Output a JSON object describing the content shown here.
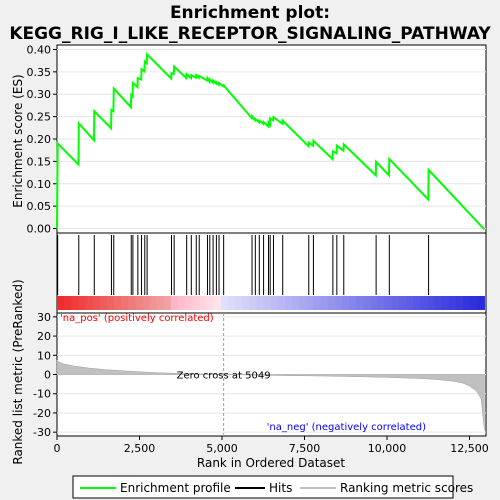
{
  "title_line1": "Enrichment plot:",
  "title_line2": "KEGG_RIG_I_LIKE_RECEPTOR_SIGNALING_PATHWAY",
  "colors": {
    "enrichment_line": "#00ff00",
    "hits": "#000000",
    "ranking_fill": "#c0c0c0",
    "pos_label": "#ff0000",
    "neg_label": "#0000ff",
    "zero_cross_line": "#a0a0a0"
  },
  "chart_data": [
    {
      "type": "line",
      "panel": "enrichment",
      "ylabel": "Enrichment score (ES)",
      "xlim": [
        0,
        13000
      ],
      "ylim": [
        -0.01,
        0.41
      ],
      "yticks": [
        0.0,
        0.05,
        0.1,
        0.15,
        0.2,
        0.25,
        0.3,
        0.35,
        0.4
      ],
      "ytick_labels": [
        "0.00",
        "0.05",
        "0.10",
        "0.15",
        "0.20",
        "0.25",
        "0.30",
        "0.35",
        "0.40"
      ],
      "series": [
        {
          "name": "Enrichment profile",
          "x": [
            0,
            20,
            650,
            660,
            1120,
            1130,
            1640,
            1650,
            1710,
            1720,
            2240,
            2250,
            2290,
            2300,
            2440,
            2450,
            2550,
            2560,
            2650,
            2660,
            2720,
            2730,
            3460,
            3470,
            3540,
            3550,
            3920,
            3930,
            4060,
            4070,
            4210,
            4220,
            4300,
            4310,
            4550,
            4560,
            4620,
            4630,
            4720,
            4730,
            4820,
            4830,
            4900,
            4910,
            5040,
            5050,
            5900,
            5910,
            6000,
            6010,
            6120,
            6130,
            6250,
            6260,
            6400,
            6410,
            6450,
            6460,
            6550,
            6560,
            6830,
            6840,
            7620,
            7630,
            7760,
            7770,
            8350,
            8360,
            8470,
            8480,
            8680,
            8690,
            9660,
            9670,
            10060,
            10070,
            11250,
            11260,
            12950
          ],
          "y": [
            0.0,
            0.19,
            0.143,
            0.235,
            0.197,
            0.262,
            0.224,
            0.265,
            0.262,
            0.313,
            0.271,
            0.298,
            0.295,
            0.325,
            0.316,
            0.336,
            0.333,
            0.356,
            0.351,
            0.373,
            0.369,
            0.389,
            0.335,
            0.347,
            0.345,
            0.362,
            0.336,
            0.345,
            0.336,
            0.343,
            0.337,
            0.343,
            0.337,
            0.341,
            0.331,
            0.336,
            0.328,
            0.333,
            0.326,
            0.331,
            0.324,
            0.327,
            0.321,
            0.325,
            0.318,
            0.32,
            0.247,
            0.251,
            0.242,
            0.245,
            0.237,
            0.241,
            0.234,
            0.238,
            0.228,
            0.237,
            0.232,
            0.246,
            0.242,
            0.249,
            0.234,
            0.241,
            0.184,
            0.192,
            0.185,
            0.196,
            0.155,
            0.172,
            0.168,
            0.185,
            0.174,
            0.188,
            0.119,
            0.149,
            0.119,
            0.155,
            0.065,
            0.131,
            -0.002
          ]
        }
      ]
    },
    {
      "type": "bar",
      "panel": "hits",
      "name": "Hits",
      "positions": [
        20,
        660,
        1130,
        1650,
        1720,
        2250,
        2300,
        2450,
        2560,
        2660,
        2730,
        3470,
        3550,
        3930,
        4070,
        4220,
        4310,
        4560,
        4630,
        4730,
        4830,
        4910,
        5050,
        5910,
        6010,
        6130,
        6260,
        6410,
        6460,
        6560,
        6840,
        7630,
        7770,
        8360,
        8480,
        8690,
        9670,
        10070,
        11260
      ]
    },
    {
      "type": "area",
      "panel": "ranking",
      "name": "Ranking metric scores",
      "xlabel": "Rank in Ordered Dataset",
      "ylabel": "Ranked list metric (PreRanked)",
      "xlim": [
        0,
        13000
      ],
      "ylim": [
        -32,
        32
      ],
      "xticks": [
        0,
        2500,
        5000,
        7500,
        10000,
        12500
      ],
      "xtick_labels": [
        "0",
        "2,500",
        "5,000",
        "7,500",
        "10,000",
        "12,500"
      ],
      "yticks": [
        -30,
        -20,
        -10,
        0,
        10,
        20,
        30
      ],
      "ytick_labels": [
        "-30",
        "-20",
        "-10",
        "0",
        "10",
        "20",
        "30"
      ],
      "x": [
        0,
        50,
        200,
        500,
        1000,
        1500,
        2000,
        2500,
        3000,
        3500,
        4000,
        4500,
        5049,
        6000,
        7000,
        8000,
        9000,
        10000,
        11000,
        11500,
        12000,
        12300,
        12500,
        12700,
        12850,
        12950
      ],
      "y": [
        7.5,
        6.5,
        5.5,
        4.5,
        3.3,
        2.5,
        1.9,
        1.4,
        1.0,
        0.7,
        0.45,
        0.25,
        0.0,
        -0.3,
        -0.55,
        -0.8,
        -1.1,
        -1.5,
        -2.1,
        -2.6,
        -3.5,
        -4.5,
        -6.0,
        -8.5,
        -12.5,
        -29.0
      ],
      "zero_cross_x": 5049,
      "zero_cross_label": "Zero cross at 5049",
      "pos_label": "'na_pos' (positively correlated)",
      "neg_label": "'na_neg' (negatively correlated)"
    }
  ],
  "legend": {
    "items": [
      {
        "label": "Enrichment profile",
        "kind": "line",
        "color": "#00ff00"
      },
      {
        "label": "Hits",
        "kind": "line",
        "color": "#000000"
      },
      {
        "label": "Ranking metric scores",
        "kind": "line",
        "color": "#c0c0c0"
      }
    ]
  }
}
